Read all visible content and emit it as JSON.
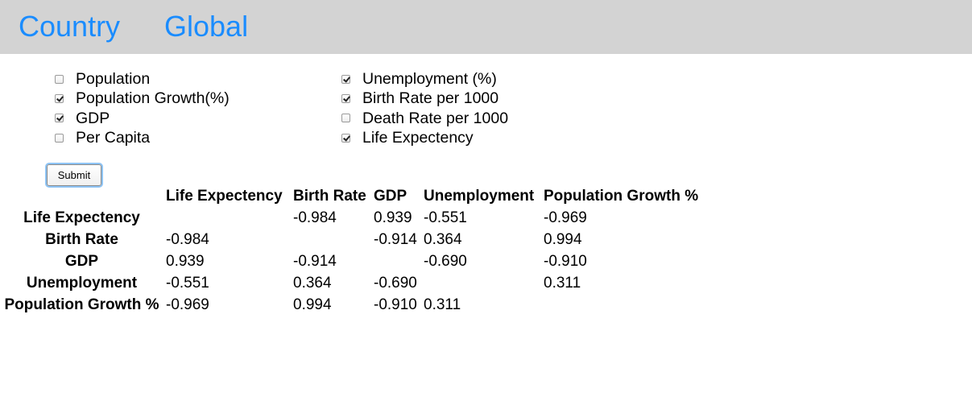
{
  "nav": {
    "country": "Country",
    "global": "Global"
  },
  "options": {
    "left": [
      {
        "label": "Population",
        "checked": false
      },
      {
        "label": "Population Growth(%)",
        "checked": true
      },
      {
        "label": "GDP",
        "checked": true
      },
      {
        "label": "Per Capita",
        "checked": false
      }
    ],
    "right": [
      {
        "label": "Unemployment (%)",
        "checked": true
      },
      {
        "label": "Birth Rate per 1000",
        "checked": true
      },
      {
        "label": "Death Rate per 1000",
        "checked": false
      },
      {
        "label": "Life Expectency",
        "checked": true
      }
    ]
  },
  "submit_label": "Submit",
  "table": {
    "columns": [
      "",
      "Life Expectency",
      "Birth Rate",
      "GDP",
      "Unemployment",
      "Population Growth %"
    ],
    "rows": [
      {
        "label": "Life Expectency",
        "cells": [
          "",
          "-0.984",
          "0.939",
          "-0.551",
          "-0.969"
        ]
      },
      {
        "label": "Birth Rate",
        "cells": [
          "-0.984",
          "",
          "-0.914",
          "0.364",
          "0.994"
        ]
      },
      {
        "label": "GDP",
        "cells": [
          "0.939",
          "-0.914",
          "",
          "-0.690",
          "-0.910"
        ]
      },
      {
        "label": "Unemployment",
        "cells": [
          "-0.551",
          "0.364",
          "-0.690",
          "",
          "0.311"
        ]
      },
      {
        "label": "Population Growth %",
        "cells": [
          "-0.969",
          "0.994",
          "-0.910",
          "0.311",
          ""
        ]
      }
    ]
  }
}
